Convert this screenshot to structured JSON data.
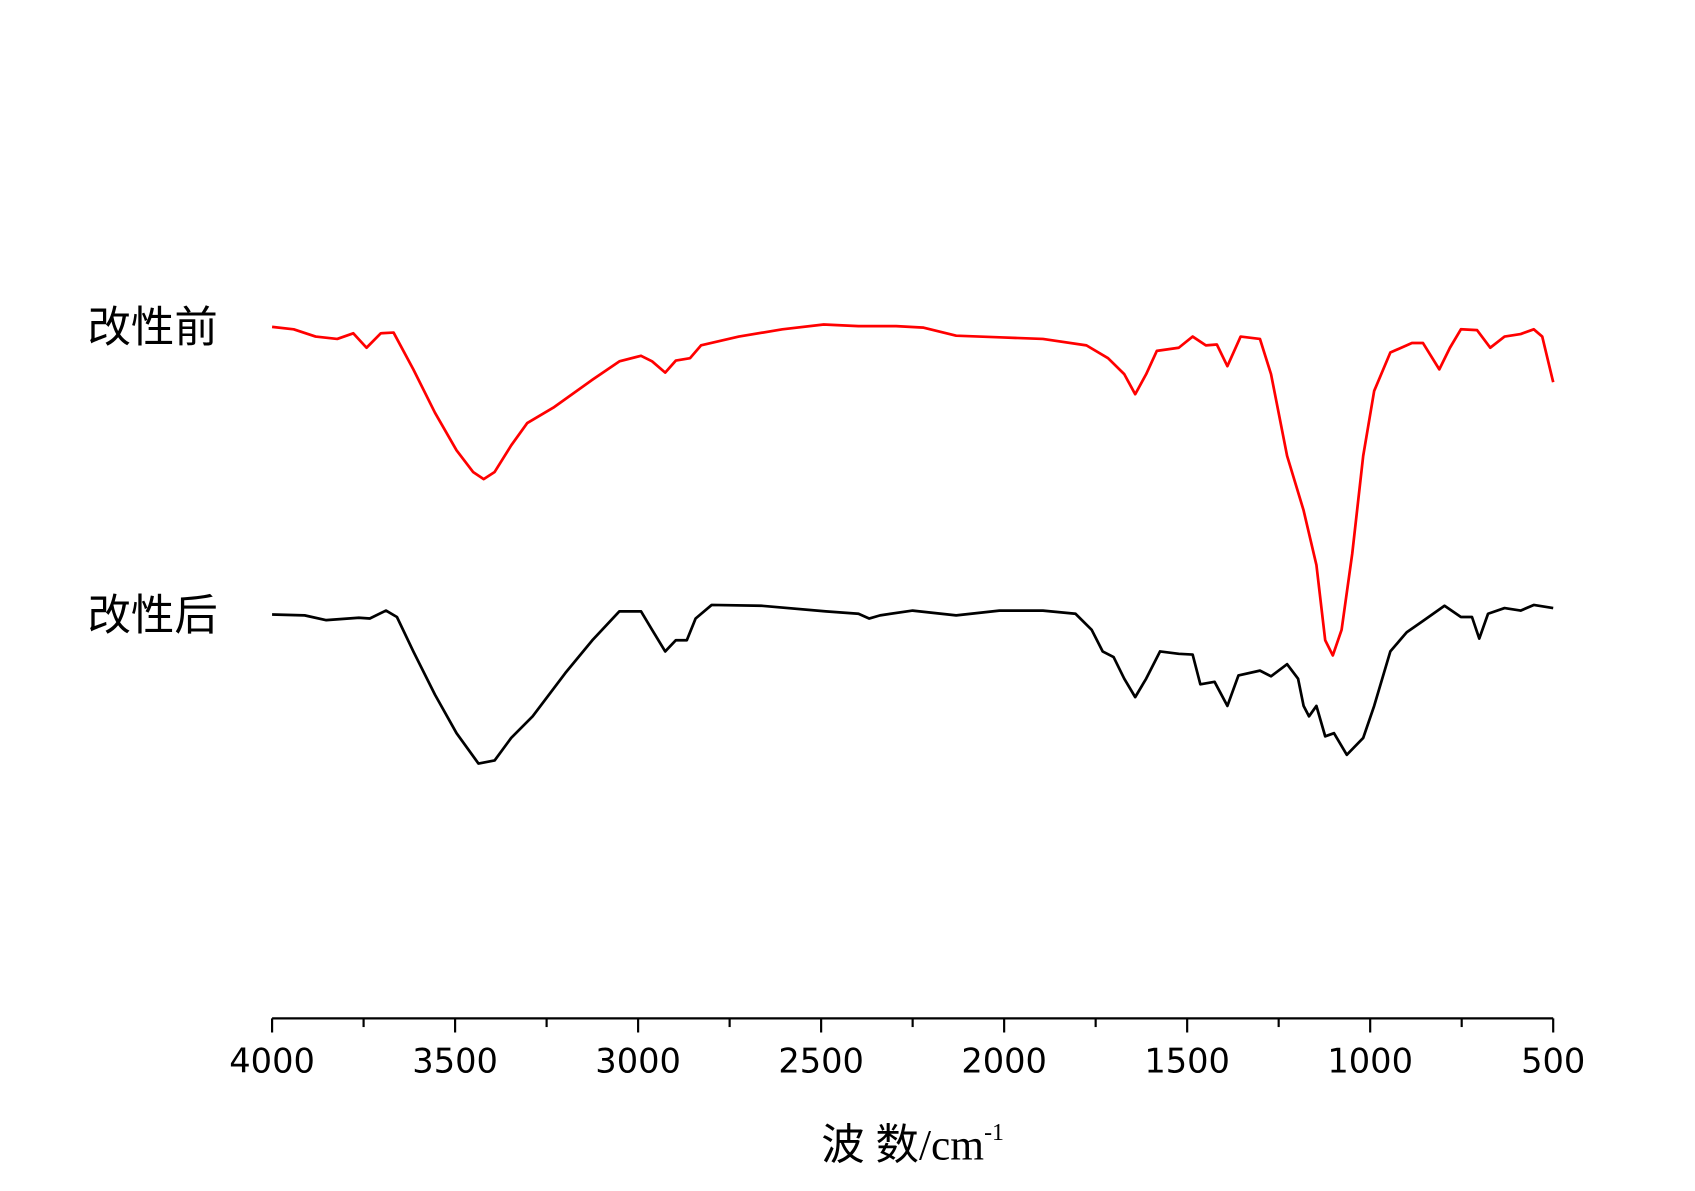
{
  "chart_data": {
    "type": "line",
    "xlabel": "波 数/cm",
    "xlabel_superscript": "-1",
    "xlim": [
      4000,
      500
    ],
    "xticks": [
      4000,
      3500,
      3000,
      2500,
      2000,
      1500,
      1000,
      500
    ],
    "xminorticks": [
      3750,
      3250,
      2750,
      2250,
      1750,
      1250,
      750
    ],
    "ylim": [
      0,
      100
    ],
    "series": [
      {
        "name": "改性前",
        "color": "#ff0000",
        "x": [
          4000,
          3941,
          3881,
          3822,
          3778,
          3742,
          3703,
          3668,
          3614,
          3555,
          3496,
          3451,
          3422,
          3392,
          3347,
          3303,
          3229,
          3125,
          3051,
          2992,
          2962,
          2926,
          2897,
          2858,
          2828,
          2725,
          2606,
          2493,
          2398,
          2295,
          2220,
          2131,
          2013,
          1894,
          1775,
          1716,
          1672,
          1642,
          1612,
          1583,
          1523,
          1485,
          1449,
          1419,
          1390,
          1354,
          1301,
          1271,
          1227,
          1182,
          1147,
          1123,
          1102,
          1078,
          1049,
          1019,
          989,
          945,
          886,
          856,
          811,
          782,
          752,
          708,
          672,
          633,
          589,
          553,
          530,
          500
        ],
        "values": [
          86.3,
          86.0,
          85.1,
          84.8,
          85.5,
          83.7,
          85.5,
          85.6,
          81.0,
          75.6,
          70.9,
          68.2,
          67.3,
          68.2,
          71.5,
          74.3,
          76.3,
          79.7,
          82.0,
          82.7,
          82.0,
          80.6,
          82.1,
          82.4,
          84.0,
          85.1,
          86.0,
          86.6,
          86.4,
          86.4,
          86.2,
          85.2,
          85.0,
          84.8,
          84.0,
          82.4,
          80.4,
          77.9,
          80.4,
          83.3,
          83.7,
          85.1,
          84.0,
          84.1,
          81.4,
          85.1,
          84.8,
          80.4,
          70.2,
          63.4,
          56.6,
          47.2,
          45.3,
          48.5,
          58.0,
          70.2,
          78.3,
          83.1,
          84.3,
          84.3,
          81.0,
          83.7,
          86.0,
          85.9,
          83.7,
          85.1,
          85.4,
          86.0,
          85.1,
          79.4
        ]
      },
      {
        "name": "改性后",
        "color": "#000000",
        "x": [
          4000,
          3911,
          3852,
          3763,
          3733,
          3689,
          3659,
          3614,
          3555,
          3496,
          3436,
          3392,
          3347,
          3288,
          3199,
          3125,
          3051,
          2992,
          2962,
          2926,
          2897,
          2867,
          2843,
          2799,
          2665,
          2487,
          2398,
          2369,
          2339,
          2250,
          2131,
          2013,
          1894,
          1805,
          1761,
          1731,
          1701,
          1672,
          1642,
          1612,
          1574,
          1523,
          1485,
          1464,
          1425,
          1390,
          1360,
          1301,
          1271,
          1227,
          1197,
          1182,
          1167,
          1147,
          1123,
          1099,
          1064,
          1019,
          989,
          945,
          900,
          856,
          797,
          752,
          722,
          702,
          678,
          633,
          589,
          553,
          500
        ],
        "values": [
          50.4,
          50.3,
          49.7,
          50.0,
          49.9,
          50.9,
          50.1,
          45.8,
          40.4,
          35.6,
          31.8,
          32.2,
          35.0,
          37.7,
          43.1,
          47.2,
          50.8,
          50.8,
          48.5,
          45.8,
          47.2,
          47.2,
          49.9,
          51.6,
          51.5,
          50.8,
          50.5,
          49.9,
          50.3,
          50.9,
          50.3,
          50.9,
          50.9,
          50.5,
          48.5,
          45.8,
          45.1,
          42.4,
          40.1,
          42.4,
          45.8,
          45.5,
          45.4,
          41.7,
          42.0,
          39.0,
          42.8,
          43.4,
          42.7,
          44.2,
          42.4,
          39.0,
          37.7,
          39.0,
          35.2,
          35.6,
          32.9,
          35.0,
          39.0,
          45.8,
          48.2,
          49.6,
          51.5,
          50.1,
          50.1,
          47.4,
          50.5,
          51.2,
          50.9,
          51.6,
          51.2
        ]
      }
    ]
  }
}
